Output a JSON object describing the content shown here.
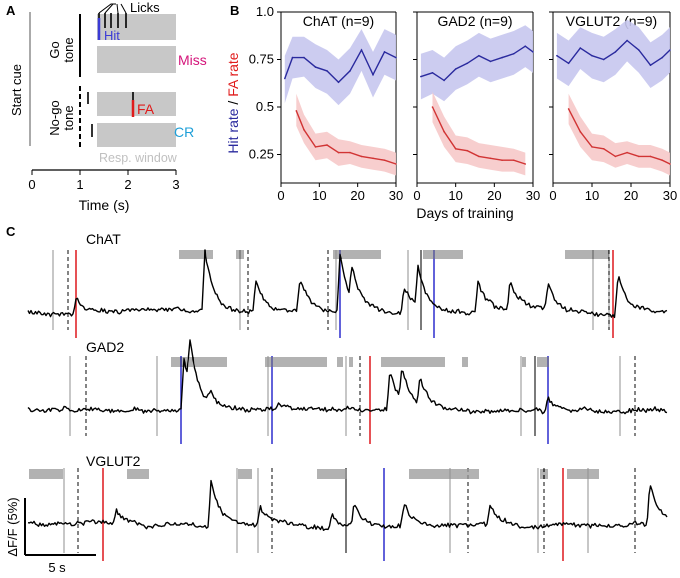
{
  "panel_labels": {
    "a": "A",
    "b": "B",
    "c": "C"
  },
  "panel_a": {
    "start_cue": "Start cue",
    "go_tone": [
      "Go",
      "tone"
    ],
    "nogo_tone": [
      "No-go",
      "tone"
    ],
    "licks": "Licks",
    "hit": "Hit",
    "miss": "Miss",
    "fa": "FA",
    "cr": "CR",
    "resp_window": "Resp. window",
    "xlabel": "Time (s)",
    "xticks": [
      "0",
      "1",
      "2",
      "3"
    ],
    "colors": {
      "hit": "#3b3bd6",
      "miss": "#d4147a",
      "fa": "#e01b1b",
      "cr": "#1e9fd8",
      "window": "#c8c8c8"
    }
  },
  "panel_b": {
    "ylabel_hit": "Hit rate",
    "ylabel_sep": " / ",
    "ylabel_fa": "FA rate",
    "xlabel": "Days of training",
    "colors": {
      "hit_line": "#2a2a9e",
      "hit_band": "#c7c7ee",
      "fa_line": "#d13434",
      "fa_band": "#f6c9c9"
    }
  },
  "panel_c": {
    "traces": [
      {
        "name": "ChAT",
        "seed": 11
      },
      {
        "name": "GAD2",
        "seed": 23
      },
      {
        "name": "VGLUT2",
        "seed": 37
      }
    ],
    "scale_y": "ΔF/F (5%)",
    "scale_x": "5 s"
  },
  "chart_data": [
    {
      "type": "line",
      "title": "ChAT (n=9)",
      "xlabel": "Days of training",
      "ylabel": "Hit rate / FA rate",
      "xlim": [
        0,
        30
      ],
      "ylim": [
        0.1,
        1.0
      ],
      "xticks": [
        "0",
        "10",
        "20",
        "30"
      ],
      "yticks": [
        "0.25",
        "0.5",
        "0.75",
        "1.0"
      ],
      "series": [
        {
          "name": "Hit rate",
          "x": [
            1,
            3,
            6,
            9,
            12,
            15,
            18,
            21,
            24,
            27,
            30
          ],
          "values": [
            0.65,
            0.76,
            0.76,
            0.71,
            0.69,
            0.63,
            0.69,
            0.8,
            0.67,
            0.79,
            0.76
          ],
          "lower": [
            0.52,
            0.65,
            0.66,
            0.6,
            0.57,
            0.51,
            0.57,
            0.69,
            0.55,
            0.67,
            0.64
          ],
          "upper": [
            0.77,
            0.87,
            0.87,
            0.83,
            0.8,
            0.75,
            0.81,
            0.91,
            0.79,
            0.91,
            0.88
          ]
        },
        {
          "name": "FA rate",
          "x": [
            4,
            6,
            9,
            12,
            15,
            18,
            21,
            24,
            27,
            30
          ],
          "values": [
            0.48,
            0.38,
            0.29,
            0.3,
            0.26,
            0.26,
            0.24,
            0.23,
            0.22,
            0.2
          ],
          "lower": [
            0.4,
            0.31,
            0.22,
            0.23,
            0.19,
            0.2,
            0.18,
            0.17,
            0.16,
            0.14
          ],
          "upper": [
            0.57,
            0.46,
            0.36,
            0.37,
            0.33,
            0.32,
            0.3,
            0.29,
            0.28,
            0.26
          ]
        }
      ]
    },
    {
      "type": "line",
      "title": "GAD2 (n=9)",
      "xlabel": "Days of training",
      "ylabel": "Hit rate / FA rate",
      "xlim": [
        0,
        30
      ],
      "ylim": [
        0.1,
        1.0
      ],
      "xticks": [
        "0",
        "10",
        "20",
        "30"
      ],
      "yticks": [
        "0.25",
        "0.5",
        "0.75",
        "1.0"
      ],
      "series": [
        {
          "name": "Hit rate",
          "x": [
            1,
            4,
            7,
            10,
            13,
            16,
            19,
            22,
            25,
            28,
            30
          ],
          "values": [
            0.66,
            0.68,
            0.64,
            0.7,
            0.73,
            0.77,
            0.74,
            0.76,
            0.78,
            0.82,
            0.79
          ],
          "lower": [
            0.54,
            0.57,
            0.53,
            0.59,
            0.62,
            0.66,
            0.63,
            0.65,
            0.67,
            0.71,
            0.68
          ],
          "upper": [
            0.78,
            0.8,
            0.76,
            0.82,
            0.85,
            0.89,
            0.86,
            0.88,
            0.9,
            0.93,
            0.9
          ]
        },
        {
          "name": "FA rate",
          "x": [
            4,
            7,
            10,
            13,
            16,
            19,
            22,
            25,
            28
          ],
          "values": [
            0.5,
            0.37,
            0.28,
            0.27,
            0.24,
            0.23,
            0.22,
            0.22,
            0.2
          ],
          "lower": [
            0.42,
            0.29,
            0.21,
            0.2,
            0.18,
            0.17,
            0.16,
            0.16,
            0.14
          ],
          "upper": [
            0.58,
            0.45,
            0.35,
            0.34,
            0.31,
            0.3,
            0.29,
            0.28,
            0.26
          ]
        }
      ]
    },
    {
      "type": "line",
      "title": "VGLUT2 (n=9)",
      "xlabel": "Days of training",
      "ylabel": "Hit rate / FA rate",
      "xlim": [
        0,
        30
      ],
      "ylim": [
        0.1,
        1.0
      ],
      "xticks": [
        "0",
        "10",
        "20",
        "30"
      ],
      "yticks": [
        "0.25",
        "0.5",
        "0.75",
        "1.0"
      ],
      "series": [
        {
          "name": "Hit rate",
          "x": [
            1,
            4,
            7,
            10,
            13,
            16,
            19,
            22,
            25,
            28,
            30
          ],
          "values": [
            0.77,
            0.73,
            0.81,
            0.77,
            0.75,
            0.79,
            0.85,
            0.8,
            0.72,
            0.76,
            0.8
          ],
          "lower": [
            0.65,
            0.61,
            0.7,
            0.65,
            0.63,
            0.67,
            0.74,
            0.68,
            0.6,
            0.64,
            0.68
          ],
          "upper": [
            0.89,
            0.85,
            0.92,
            0.89,
            0.87,
            0.91,
            0.96,
            0.92,
            0.84,
            0.88,
            0.92
          ]
        },
        {
          "name": "FA rate",
          "x": [
            4,
            7,
            10,
            13,
            16,
            19,
            22,
            25,
            28,
            30
          ],
          "values": [
            0.49,
            0.37,
            0.29,
            0.28,
            0.24,
            0.26,
            0.24,
            0.24,
            0.22,
            0.2
          ],
          "lower": [
            0.41,
            0.29,
            0.22,
            0.21,
            0.18,
            0.2,
            0.18,
            0.18,
            0.16,
            0.14
          ],
          "upper": [
            0.57,
            0.45,
            0.36,
            0.35,
            0.31,
            0.32,
            0.3,
            0.3,
            0.28,
            0.26
          ]
        }
      ]
    }
  ]
}
